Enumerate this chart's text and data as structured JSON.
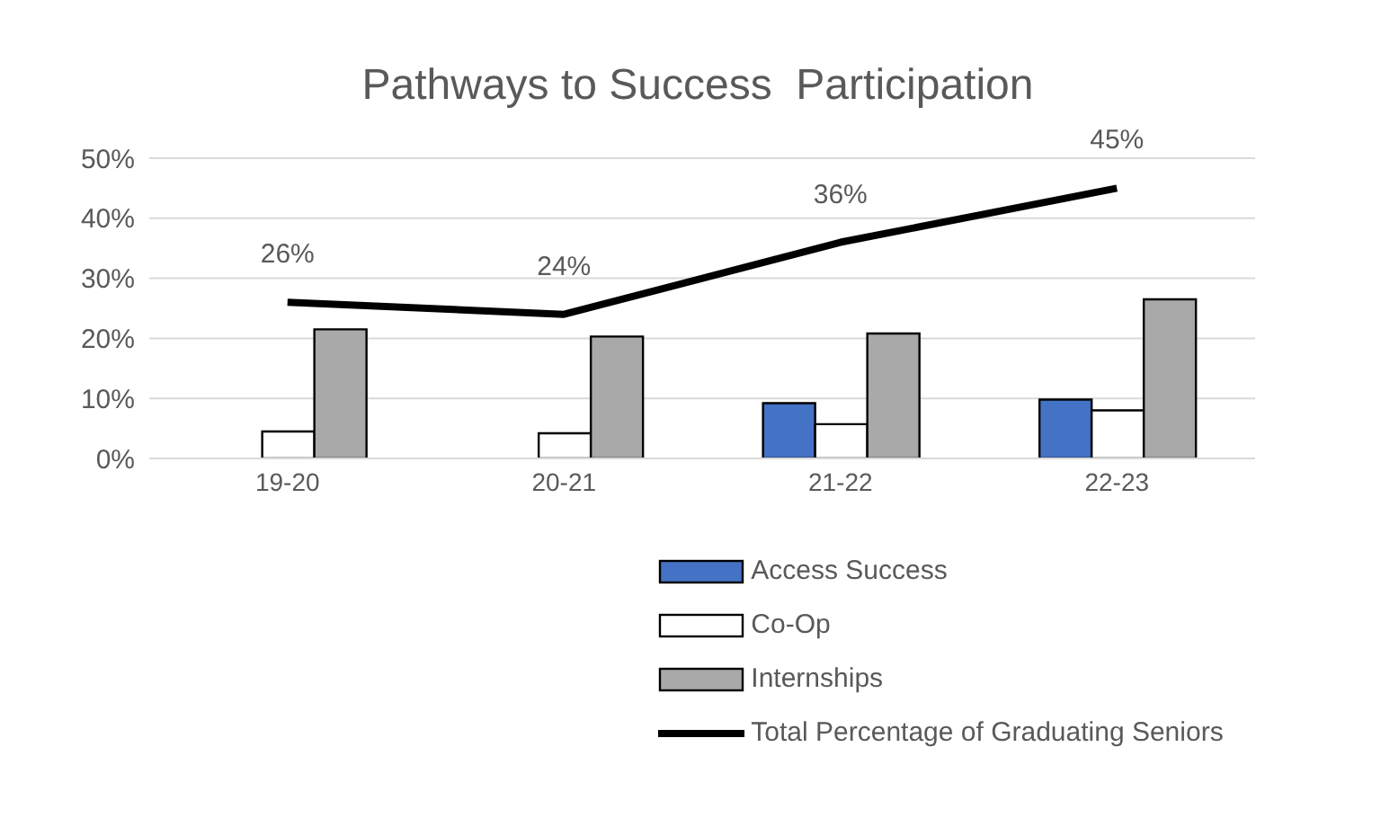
{
  "chart_data": {
    "type": "bar",
    "title": "Pathways to Success  Participation",
    "categories": [
      "19-20",
      "20-21",
      "21-22",
      "22-23"
    ],
    "series": [
      {
        "name": "Access Success",
        "color": "#4472c4",
        "values": [
          0,
          0,
          9.2,
          9.8
        ]
      },
      {
        "name": "Co-Op",
        "color": "#ffffff",
        "values": [
          4.5,
          4.2,
          5.7,
          8.0
        ]
      },
      {
        "name": "Internships",
        "color": "#a9a9a9",
        "values": [
          21.5,
          20.3,
          20.8,
          26.5
        ]
      },
      {
        "name": "Total Percentage of Graduating Seniors",
        "type": "line",
        "color": "#000000",
        "values": [
          26,
          24,
          36,
          45
        ],
        "value_labels": [
          "26%",
          "24%",
          "36%",
          "45%"
        ]
      }
    ],
    "ylim": [
      0,
      50
    ],
    "yticks": [
      {
        "value": 0,
        "label": "0%"
      },
      {
        "value": 10,
        "label": "10%"
      },
      {
        "value": 20,
        "label": "20%"
      },
      {
        "value": 30,
        "label": "30%"
      },
      {
        "value": 40,
        "label": "40%"
      },
      {
        "value": 50,
        "label": "50%"
      }
    ],
    "grid": "y",
    "legend": "bottom"
  }
}
